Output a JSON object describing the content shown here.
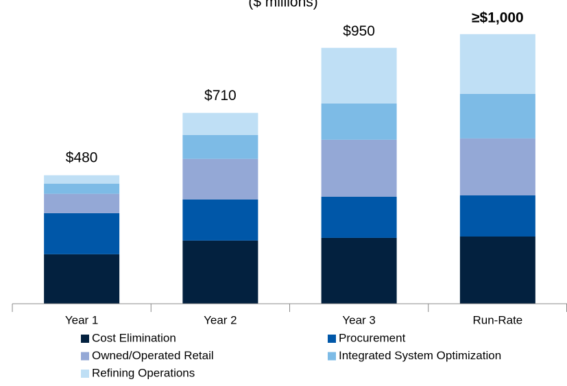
{
  "chart_data": {
    "type": "stacked_bar",
    "subtitle": "($ millions)",
    "categories": [
      "Year 1",
      "Year 2",
      "Year 3",
      "Run-Rate"
    ],
    "series": [
      {
        "name": "Cost Elimination",
        "color": "#03213f",
        "values": [
          184,
          235,
          245,
          250
        ]
      },
      {
        "name": "Procurement",
        "color": "#0057a8",
        "values": [
          153,
          153,
          153,
          153
        ]
      },
      {
        "name": "Owned/Operated Retail",
        "color": "#94a8d6",
        "values": [
          72,
          151,
          212,
          212
        ]
      },
      {
        "name": "Integrated System Optimization",
        "color": "#7dbbe6",
        "values": [
          38,
          89,
          135,
          166
        ]
      },
      {
        "name": "Refining Operations",
        "color": "#bfdff5",
        "values": [
          31,
          82,
          207,
          222
        ]
      }
    ],
    "totals": [
      480,
      710,
      950,
      1000
    ],
    "total_labels": [
      "$480",
      "$710",
      "$950",
      "≥$1,000"
    ],
    "ylim": [
      0,
      1130
    ]
  }
}
